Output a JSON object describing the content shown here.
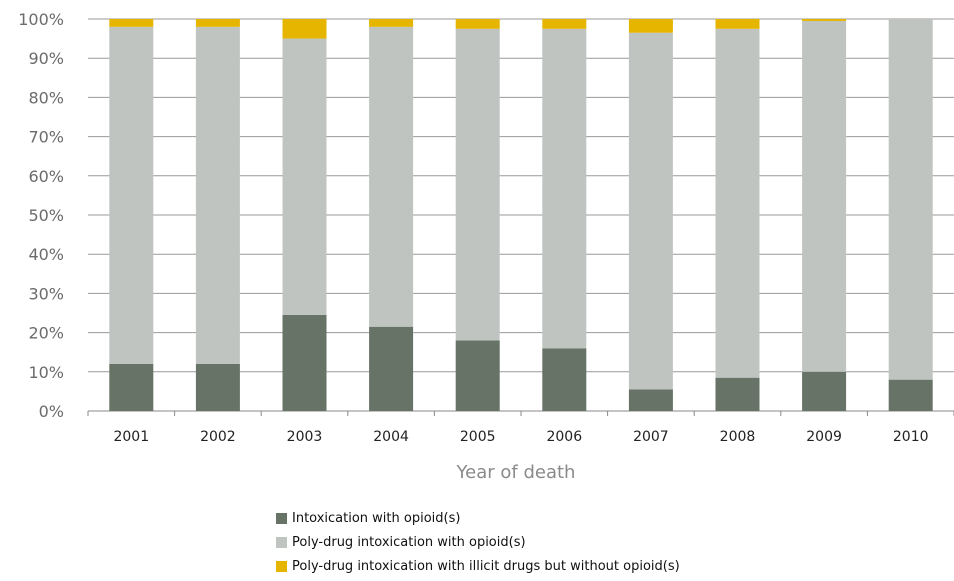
{
  "chart_data": {
    "type": "bar",
    "stacked": true,
    "categories": [
      "2001",
      "2002",
      "2003",
      "2004",
      "2005",
      "2006",
      "2007",
      "2008",
      "2009",
      "2010"
    ],
    "series": [
      {
        "name": "Intoxication with opioid(s)",
        "color": "#667366",
        "values": [
          12,
          12,
          24.5,
          21.5,
          18,
          16,
          5.5,
          8.5,
          10,
          8
        ]
      },
      {
        "name": "Poly-drug intoxication with opioid(s)",
        "color": "#bfc4c1",
        "values": [
          86,
          86,
          70.5,
          76.5,
          79.5,
          81.5,
          91,
          89,
          89.5,
          92
        ]
      },
      {
        "name": "Poly-drug intoxication with illicit drugs but without opioid(s)",
        "color": "#e5b500",
        "values": [
          2,
          2,
          5,
          2,
          2.5,
          2.5,
          3.5,
          2.5,
          0.5,
          0
        ]
      }
    ],
    "title": "",
    "xlabel": "Year of death",
    "ylabel": "",
    "ylim": [
      0,
      100
    ],
    "yticks": [
      "0%",
      "10%",
      "20%",
      "30%",
      "40%",
      "50%",
      "60%",
      "70%",
      "80%",
      "90%",
      "100%"
    ],
    "grid": true,
    "legend_position": "bottom"
  }
}
